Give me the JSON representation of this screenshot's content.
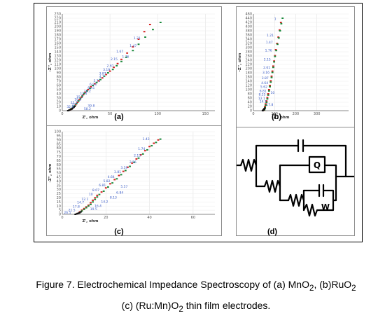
{
  "colors": {
    "series_main": "#d62020",
    "series_fit": "#1a8a3c",
    "series_low": "#111111",
    "freq_label": "#3a5cc7"
  },
  "panels": {
    "a": "(a)",
    "b": "(b)",
    "c": "(c)",
    "d": "(d)"
  },
  "caption": {
    "line1_html": "Figure 7. Electrochemical Impedance Spectroscopy of (a) MnO<sub>2</sub>, (b)RuO<sub>2</sub>",
    "line2_html": "(c) (Ru:Mn)O<sub>2</sub> thin film electrodes."
  },
  "circuit": {
    "cpe_label": "Q",
    "warburg_label": "W"
  },
  "chart_data": [
    {
      "panel": "a",
      "type": "scatter",
      "xlabel": "Z', ohm",
      "ylabel": "-Z'', ohm",
      "xlim": [
        0,
        160
      ],
      "ylim": [
        0,
        230
      ],
      "xticks": [
        0,
        50,
        100,
        150
      ],
      "yticks": [
        0,
        10,
        20,
        30,
        40,
        50,
        60,
        70,
        80,
        90,
        100,
        110,
        120,
        130,
        140,
        150,
        160,
        170,
        180,
        190,
        200,
        210,
        220,
        230
      ],
      "series": [
        {
          "x": [
            8,
            10,
            12,
            14,
            16,
            18,
            20,
            22,
            24,
            27,
            30,
            34,
            38,
            42,
            46,
            50,
            54,
            58,
            62,
            68,
            74,
            80,
            86,
            92
          ],
          "y": [
            2,
            5,
            9,
            14,
            20,
            26,
            32,
            38,
            44,
            50,
            57,
            64,
            71,
            78,
            86,
            94,
            103,
            112,
            122,
            137,
            152,
            170,
            188,
            205
          ]
        },
        {
          "x": [
            9,
            11,
            13,
            15,
            17,
            19,
            21,
            23,
            26,
            29,
            32,
            36,
            40,
            44,
            48,
            53,
            57,
            62,
            67,
            74,
            80,
            87,
            95,
            103
          ],
          "y": [
            4,
            8,
            12,
            17,
            23,
            29,
            35,
            41,
            47,
            53,
            60,
            67,
            74,
            82,
            90,
            98,
            107,
            117,
            127,
            143,
            158,
            175,
            193,
            210
          ]
        },
        {
          "x": [
            6,
            7,
            8,
            9,
            10,
            11,
            12,
            13
          ],
          "y": [
            0,
            1,
            2,
            3,
            4,
            6,
            8,
            10
          ]
        }
      ],
      "annotations": [
        {
          "text": "1.67",
          "x": 64,
          "y": 138
        },
        {
          "text": "2.15",
          "x": 58,
          "y": 120
        },
        {
          "text": "2.61",
          "x": 54,
          "y": 104
        },
        {
          "text": "3.19",
          "x": 50,
          "y": 95
        },
        {
          "text": "3.87",
          "x": 46,
          "y": 86
        },
        {
          "text": "4.7",
          "x": 44,
          "y": 78
        },
        {
          "text": "5.71",
          "x": 40,
          "y": 68
        },
        {
          "text": "6.93",
          "x": 36,
          "y": 60
        },
        {
          "text": "8.41",
          "x": 34,
          "y": 52
        },
        {
          "text": "10.2",
          "x": 30,
          "y": 44
        },
        {
          "text": "12.4",
          "x": 26,
          "y": 38
        },
        {
          "text": "15.1",
          "x": 22,
          "y": 30
        },
        {
          "text": "18.3",
          "x": 20,
          "y": 24
        },
        {
          "text": "22.2",
          "x": 16,
          "y": 17
        },
        {
          "text": "27",
          "x": 14,
          "y": 12
        },
        {
          "text": "32.8",
          "x": 12,
          "y": 7
        },
        {
          "text": "39.8",
          "x": 34,
          "y": 9
        },
        {
          "text": "58.2",
          "x": 30,
          "y": 2
        },
        {
          "text": "1.21",
          "x": 82,
          "y": 170
        },
        {
          "text": "1.47",
          "x": 78,
          "y": 152
        },
        {
          "text": "1.76",
          "x": 70,
          "y": 126
        }
      ]
    },
    {
      "panel": "b",
      "type": "scatter",
      "xlabel": "Z', ohm",
      "ylabel": "-Z'', ohm",
      "xlim": [
        0,
        450
      ],
      "ylim": [
        0,
        460
      ],
      "xticks": [
        0,
        100,
        200,
        300
      ],
      "yticks": [
        0,
        20,
        40,
        60,
        80,
        100,
        120,
        140,
        160,
        180,
        200,
        220,
        240,
        260,
        280,
        300,
        320,
        340,
        360,
        380,
        400,
        420,
        440,
        460
      ],
      "series": [
        {
          "x": [
            50,
            52,
            55,
            58,
            62,
            66,
            70,
            74,
            78,
            82,
            86,
            90,
            94,
            98,
            102,
            106,
            112,
            118,
            124,
            130
          ],
          "y": [
            2,
            10,
            20,
            32,
            46,
            62,
            80,
            100,
            120,
            142,
            164,
            188,
            212,
            236,
            262,
            290,
            320,
            350,
            384,
            420
          ]
        },
        {
          "x": [
            52,
            55,
            58,
            62,
            66,
            70,
            74,
            78,
            82,
            86,
            90,
            94,
            98,
            102,
            108,
            114,
            120,
            126,
            132,
            138
          ],
          "y": [
            4,
            14,
            26,
            40,
            56,
            74,
            94,
            114,
            136,
            158,
            182,
            206,
            232,
            258,
            286,
            316,
            346,
            380,
            414,
            440
          ]
        },
        {
          "x": [
            44,
            46,
            48,
            50,
            52,
            54
          ],
          "y": [
            0,
            2,
            4,
            6,
            9,
            12
          ]
        }
      ],
      "annotations": [
        {
          "text": "1.21",
          "x": 96,
          "y": 354
        },
        {
          "text": "1.47",
          "x": 92,
          "y": 320
        },
        {
          "text": "1.76",
          "x": 88,
          "y": 282
        },
        {
          "text": "2.15",
          "x": 82,
          "y": 238
        },
        {
          "text": "2.61",
          "x": 80,
          "y": 200
        },
        {
          "text": "3.16",
          "x": 76,
          "y": 176
        },
        {
          "text": "3.87",
          "x": 72,
          "y": 150
        },
        {
          "text": "4.64",
          "x": 70,
          "y": 126
        },
        {
          "text": "5.62",
          "x": 66,
          "y": 108
        },
        {
          "text": "6.81",
          "x": 62,
          "y": 88
        },
        {
          "text": "8.25",
          "x": 58,
          "y": 72
        },
        {
          "text": "10",
          "x": 100,
          "y": 80
        },
        {
          "text": "12.1",
          "x": 56,
          "y": 54
        },
        {
          "text": "14.7",
          "x": 62,
          "y": 38
        },
        {
          "text": "17.8",
          "x": 94,
          "y": 24
        },
        {
          "text": "1",
          "x": 108,
          "y": 432
        }
      ]
    },
    {
      "panel": "c",
      "type": "scatter",
      "xlabel": "Z', ohm",
      "ylabel": "-Z'', ohm",
      "xlim": [
        0,
        70
      ],
      "ylim": [
        0,
        100
      ],
      "xticks": [
        0,
        20,
        40,
        60
      ],
      "yticks": [
        0,
        5,
        10,
        15,
        20,
        25,
        30,
        35,
        40,
        45,
        50,
        55,
        60,
        65,
        70,
        75,
        80,
        85,
        90,
        95,
        100
      ],
      "series": [
        {
          "x": [
            7,
            8,
            9,
            10,
            11,
            12,
            13,
            14,
            15,
            16,
            18,
            20,
            22,
            24,
            26,
            28,
            30,
            32,
            34,
            36,
            38,
            40,
            42,
            44
          ],
          "y": [
            1,
            3,
            5,
            7,
            9,
            11,
            14,
            17,
            20,
            23,
            27,
            32,
            37,
            42,
            47,
            52,
            57,
            62,
            67,
            72,
            77,
            82,
            86,
            90
          ]
        },
        {
          "x": [
            8,
            9,
            10,
            11,
            12,
            13,
            14,
            15,
            16,
            17,
            19,
            21,
            23,
            25,
            27,
            29,
            31,
            33,
            35,
            37,
            39,
            41,
            43,
            45
          ],
          "y": [
            2,
            4,
            6,
            8,
            10,
            12,
            15,
            18,
            21,
            24,
            28,
            33,
            38,
            43,
            48,
            53,
            58,
            63,
            68,
            73,
            78,
            83,
            87,
            91
          ]
        },
        {
          "x": [
            6,
            6.5,
            7,
            7.5,
            8,
            8.5
          ],
          "y": [
            0,
            0.5,
            1,
            1.5,
            2,
            3
          ]
        }
      ],
      "annotations": [
        {
          "text": "1.43",
          "x": 40,
          "y": 90
        },
        {
          "text": "1.74",
          "x": 38,
          "y": 78
        },
        {
          "text": "2.13",
          "x": 36,
          "y": 70
        },
        {
          "text": "2.56",
          "x": 34,
          "y": 62
        },
        {
          "text": "3.59",
          "x": 30,
          "y": 55
        },
        {
          "text": "3.81",
          "x": 27,
          "y": 50
        },
        {
          "text": "4.64",
          "x": 24,
          "y": 44
        },
        {
          "text": "5.82",
          "x": 22,
          "y": 39
        },
        {
          "text": "6.81",
          "x": 20,
          "y": 34
        },
        {
          "text": "8.07",
          "x": 17,
          "y": 28
        },
        {
          "text": "10",
          "x": 14,
          "y": 23
        },
        {
          "text": "12.1",
          "x": 12,
          "y": 17
        },
        {
          "text": "14.7",
          "x": 10,
          "y": 13
        },
        {
          "text": "17.8",
          "x": 8,
          "y": 8
        },
        {
          "text": "21.5",
          "x": 6,
          "y": 4
        },
        {
          "text": "26.1",
          "x": 4,
          "y": 1
        },
        {
          "text": "5.57",
          "x": 30,
          "y": 32
        },
        {
          "text": "6.84",
          "x": 28,
          "y": 25
        },
        {
          "text": "8.13",
          "x": 25,
          "y": 19
        },
        {
          "text": "14.2",
          "x": 21,
          "y": 14
        },
        {
          "text": "16.4",
          "x": 18,
          "y": 9
        },
        {
          "text": "19.5",
          "x": 16,
          "y": 5
        }
      ]
    }
  ]
}
